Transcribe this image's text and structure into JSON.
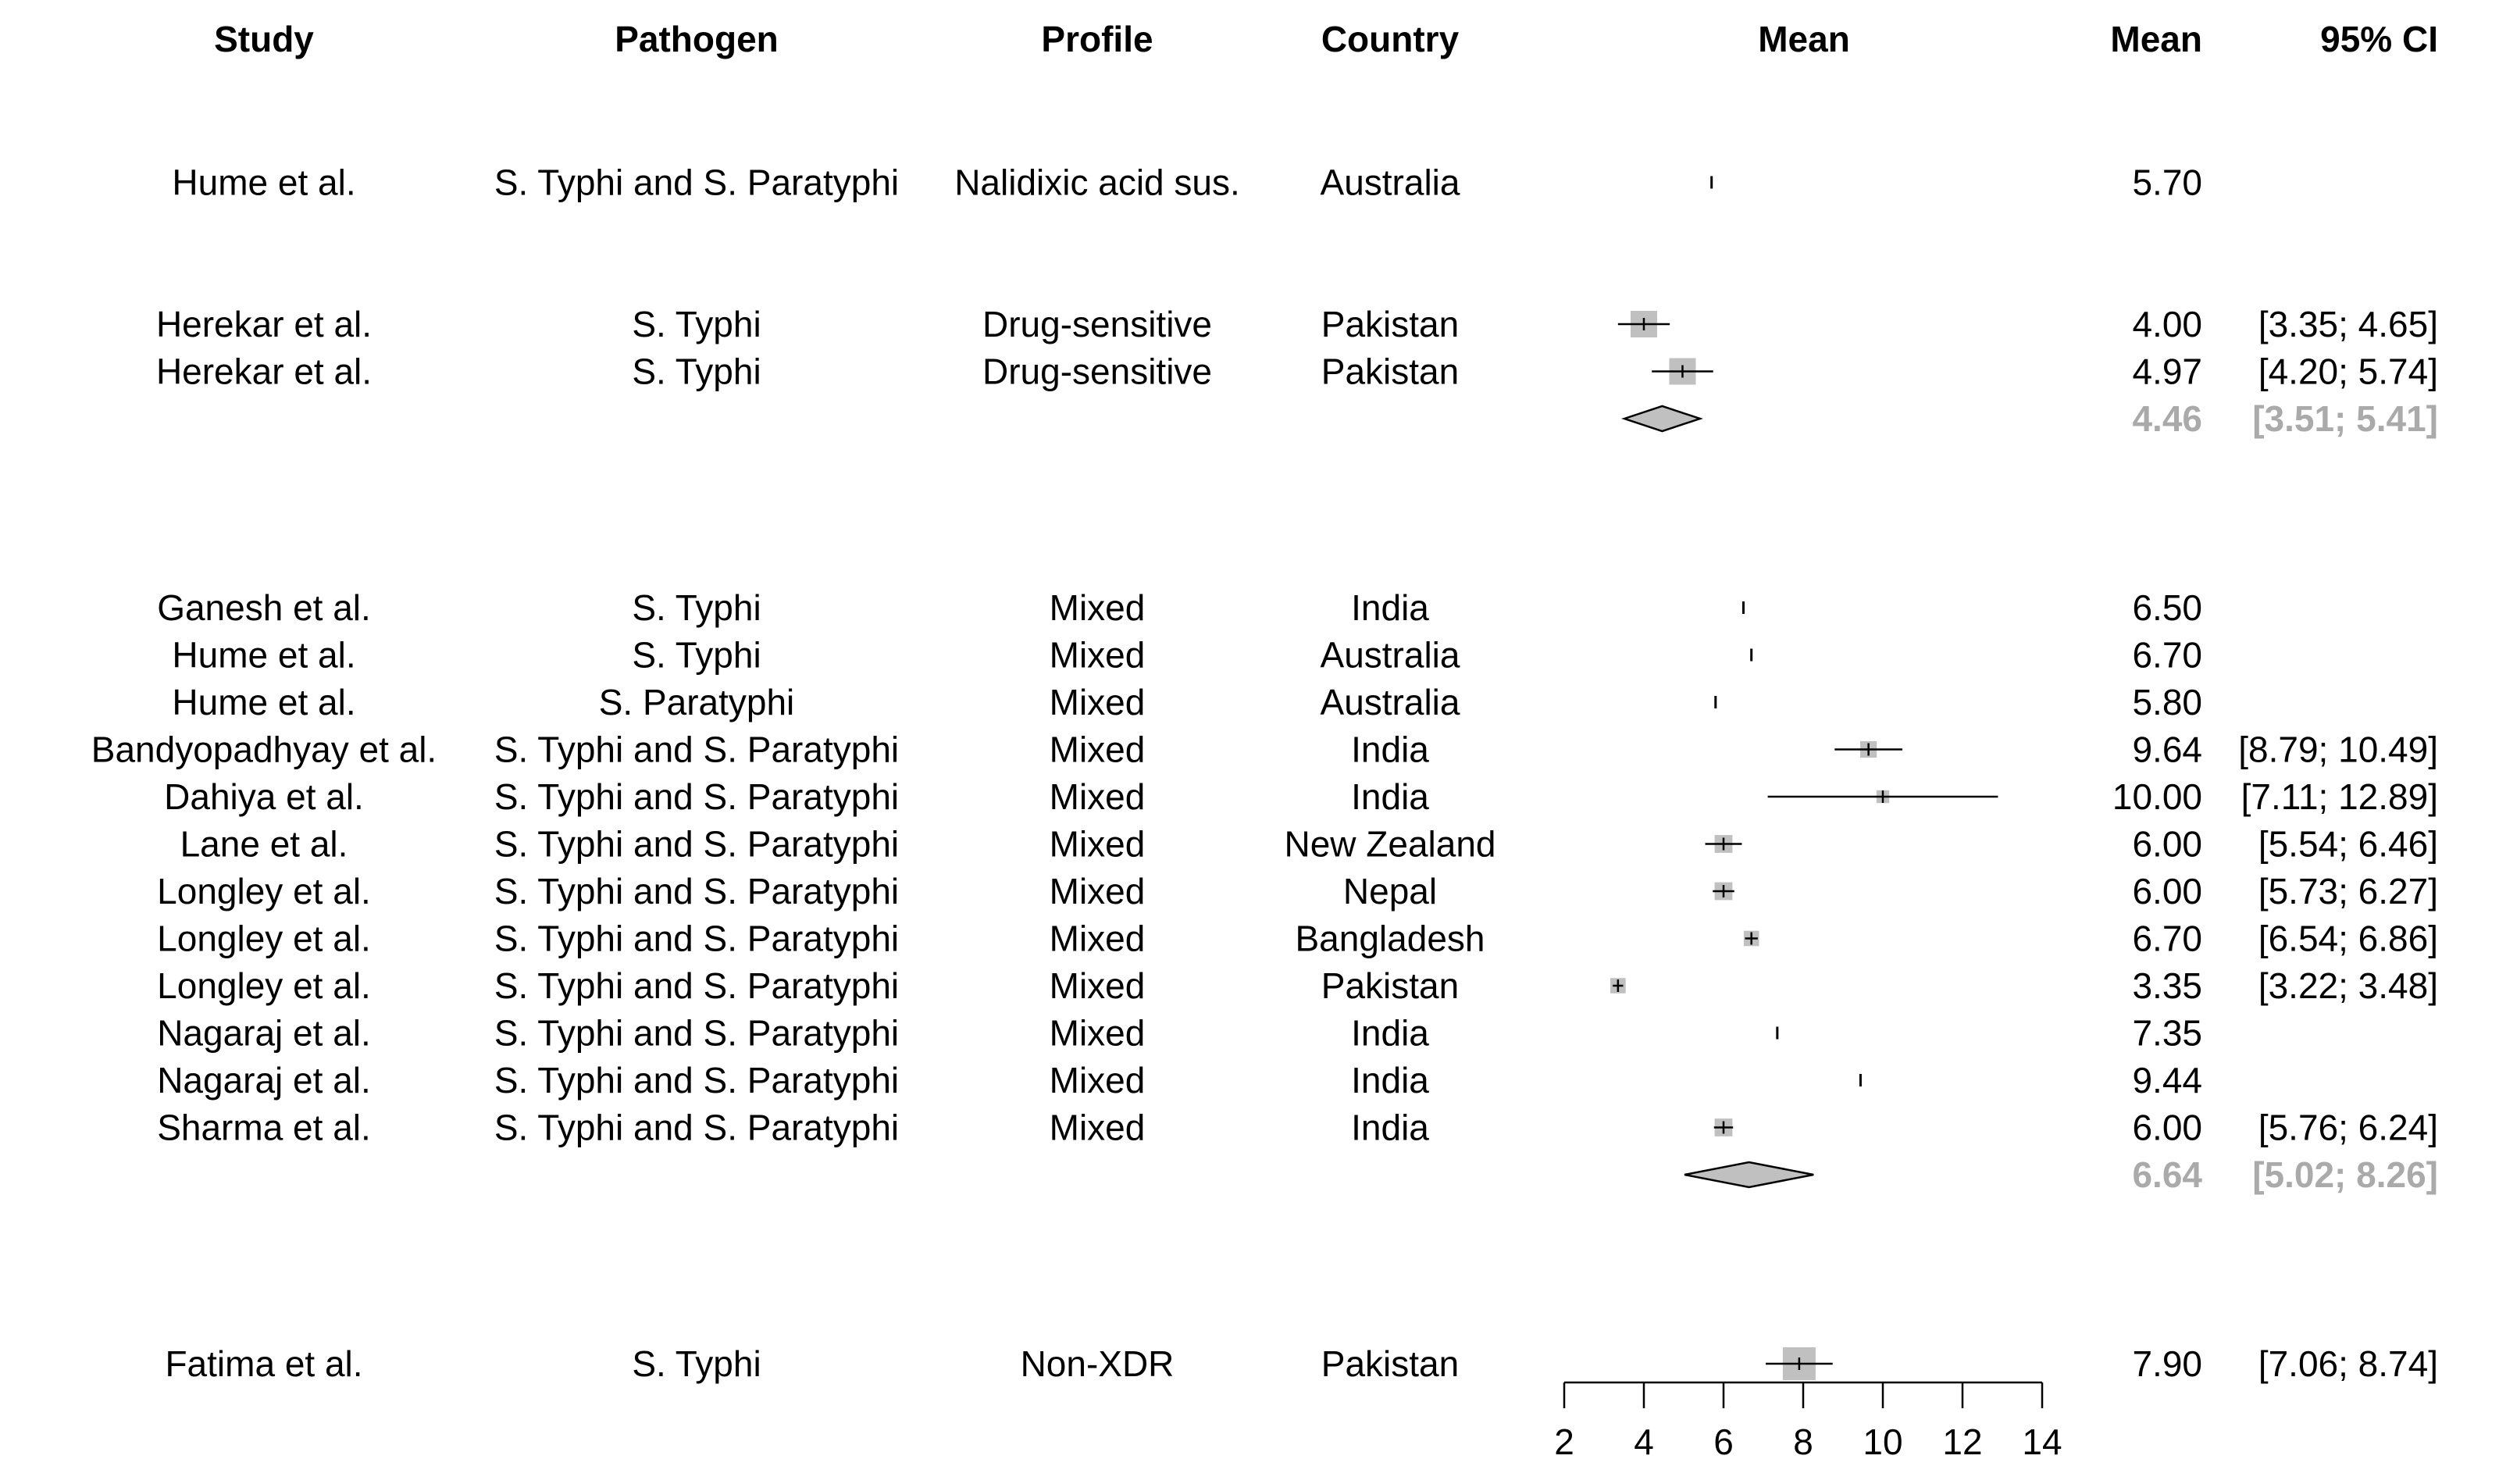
{
  "columns": {
    "study": "Study",
    "pathogen": "Pathogen",
    "profile": "Profile",
    "country": "Country",
    "plot": "Mean",
    "mean": "Mean",
    "ci": "95% CI"
  },
  "colors": {
    "square": "#c0c0c0",
    "diamond": "#c0c0c0",
    "pooled_text": "#aaaaaa",
    "line": "#000000"
  },
  "chart_data": {
    "type": "forest",
    "x_axis": {
      "min": 2,
      "max": 14,
      "ticks": [
        "2",
        "4",
        "6",
        "8",
        "10",
        "12",
        "14"
      ]
    },
    "rows": [
      {
        "kind": "study",
        "slot": 3,
        "study": "Hume et al.",
        "pathogen": "S. Typhi and S. Paratyphi",
        "profile": "Nalidixic acid sus.",
        "country": "Australia",
        "mean": 5.7,
        "ci": null,
        "mean_text": "5.70",
        "ci_text": "",
        "weight": 0
      },
      {
        "kind": "study",
        "slot": 6,
        "study": "Herekar et al.",
        "pathogen": "S. Typhi",
        "profile": "Drug-sensitive",
        "country": "Pakistan",
        "mean": 4.0,
        "ci": [
          3.35,
          4.65
        ],
        "mean_text": "4.00",
        "ci_text": "[3.35;  4.65]",
        "weight": 0.75
      },
      {
        "kind": "study",
        "slot": 7,
        "study": "Herekar et al.",
        "pathogen": "S. Typhi",
        "profile": "Drug-sensitive",
        "country": "Pakistan",
        "mean": 4.97,
        "ci": [
          4.2,
          5.74
        ],
        "mean_text": "4.97",
        "ci_text": "[4.20;  5.74]",
        "weight": 0.75
      },
      {
        "kind": "pooled",
        "slot": 8,
        "mean": 4.46,
        "ci": [
          3.51,
          5.41
        ],
        "mean_text": "4.46",
        "ci_text": "[3.51;  5.41]"
      },
      {
        "kind": "study",
        "slot": 12,
        "study": "Ganesh et al.",
        "pathogen": "S. Typhi",
        "profile": "Mixed",
        "country": "India",
        "mean": 6.5,
        "ci": null,
        "mean_text": "6.50",
        "ci_text": "",
        "weight": 0
      },
      {
        "kind": "study",
        "slot": 13,
        "study": "Hume et al.",
        "pathogen": "S. Typhi",
        "profile": "Mixed",
        "country": "Australia",
        "mean": 6.7,
        "ci": null,
        "mean_text": "6.70",
        "ci_text": "",
        "weight": 0
      },
      {
        "kind": "study",
        "slot": 14,
        "study": "Hume et al.",
        "pathogen": "S. Paratyphi",
        "profile": "Mixed",
        "country": "Australia",
        "mean": 5.8,
        "ci": null,
        "mean_text": "5.80",
        "ci_text": "",
        "weight": 0
      },
      {
        "kind": "study",
        "slot": 15,
        "study": "Bandyopadhyay et al.",
        "pathogen": "S. Typhi and S. Paratyphi",
        "profile": "Mixed",
        "country": "India",
        "mean": 9.64,
        "ci": [
          8.79,
          10.49
        ],
        "mean_text": "9.64",
        "ci_text": "[8.79; 10.49]",
        "weight": 0.35
      },
      {
        "kind": "study",
        "slot": 16,
        "study": "Dahiya et al.",
        "pathogen": "S. Typhi and S. Paratyphi",
        "profile": "Mixed",
        "country": "India",
        "mean": 10.0,
        "ci": [
          7.11,
          12.89
        ],
        "mean_text": "10.00",
        "ci_text": "[7.11; 12.89]",
        "weight": 0.2
      },
      {
        "kind": "study",
        "slot": 17,
        "study": "Lane et al.",
        "pathogen": "S. Typhi and S. Paratyphi",
        "profile": "Mixed",
        "country": "New Zealand",
        "mean": 6.0,
        "ci": [
          5.54,
          6.46
        ],
        "mean_text": "6.00",
        "ci_text": "[5.54;  6.46]",
        "weight": 0.4
      },
      {
        "kind": "study",
        "slot": 18,
        "study": "Longley et al.",
        "pathogen": "S. Typhi and S. Paratyphi",
        "profile": "Mixed",
        "country": "Nepal",
        "mean": 6.0,
        "ci": [
          5.73,
          6.27
        ],
        "mean_text": "6.00",
        "ci_text": "[5.73;  6.27]",
        "weight": 0.4
      },
      {
        "kind": "study",
        "slot": 19,
        "study": "Longley et al.",
        "pathogen": "S. Typhi and S. Paratyphi",
        "profile": "Mixed",
        "country": "Bangladesh",
        "mean": 6.7,
        "ci": [
          6.54,
          6.86
        ],
        "mean_text": "6.70",
        "ci_text": "[6.54;  6.86]",
        "weight": 0.3
      },
      {
        "kind": "study",
        "slot": 20,
        "study": "Longley et al.",
        "pathogen": "S. Typhi and S. Paratyphi",
        "profile": "Mixed",
        "country": "Pakistan",
        "mean": 3.35,
        "ci": [
          3.22,
          3.48
        ],
        "mean_text": "3.35",
        "ci_text": "[3.22;  3.48]",
        "weight": 0.3
      },
      {
        "kind": "study",
        "slot": 21,
        "study": "Nagaraj et al.",
        "pathogen": "S. Typhi and S. Paratyphi",
        "profile": "Mixed",
        "country": "India",
        "mean": 7.35,
        "ci": null,
        "mean_text": "7.35",
        "ci_text": "",
        "weight": 0
      },
      {
        "kind": "study",
        "slot": 22,
        "study": "Nagaraj et al.",
        "pathogen": "S. Typhi and S. Paratyphi",
        "profile": "Mixed",
        "country": "India",
        "mean": 9.44,
        "ci": null,
        "mean_text": "9.44",
        "ci_text": "",
        "weight": 0
      },
      {
        "kind": "study",
        "slot": 23,
        "study": "Sharma et al.",
        "pathogen": "S. Typhi and S. Paratyphi",
        "profile": "Mixed",
        "country": "India",
        "mean": 6.0,
        "ci": [
          5.76,
          6.24
        ],
        "mean_text": "6.00",
        "ci_text": "[5.76;  6.24]",
        "weight": 0.4
      },
      {
        "kind": "pooled",
        "slot": 24,
        "mean": 6.64,
        "ci": [
          5.02,
          8.26
        ],
        "mean_text": "6.64",
        "ci_text": "[5.02;  8.26]"
      },
      {
        "kind": "study",
        "slot": 28,
        "study": "Fatima et al.",
        "pathogen": "S. Typhi",
        "profile": "Non-XDR",
        "country": "Pakistan",
        "mean": 7.9,
        "ci": [
          7.06,
          8.74
        ],
        "mean_text": "7.90",
        "ci_text": "[7.06;  8.74]",
        "weight": 1.0
      }
    ]
  }
}
